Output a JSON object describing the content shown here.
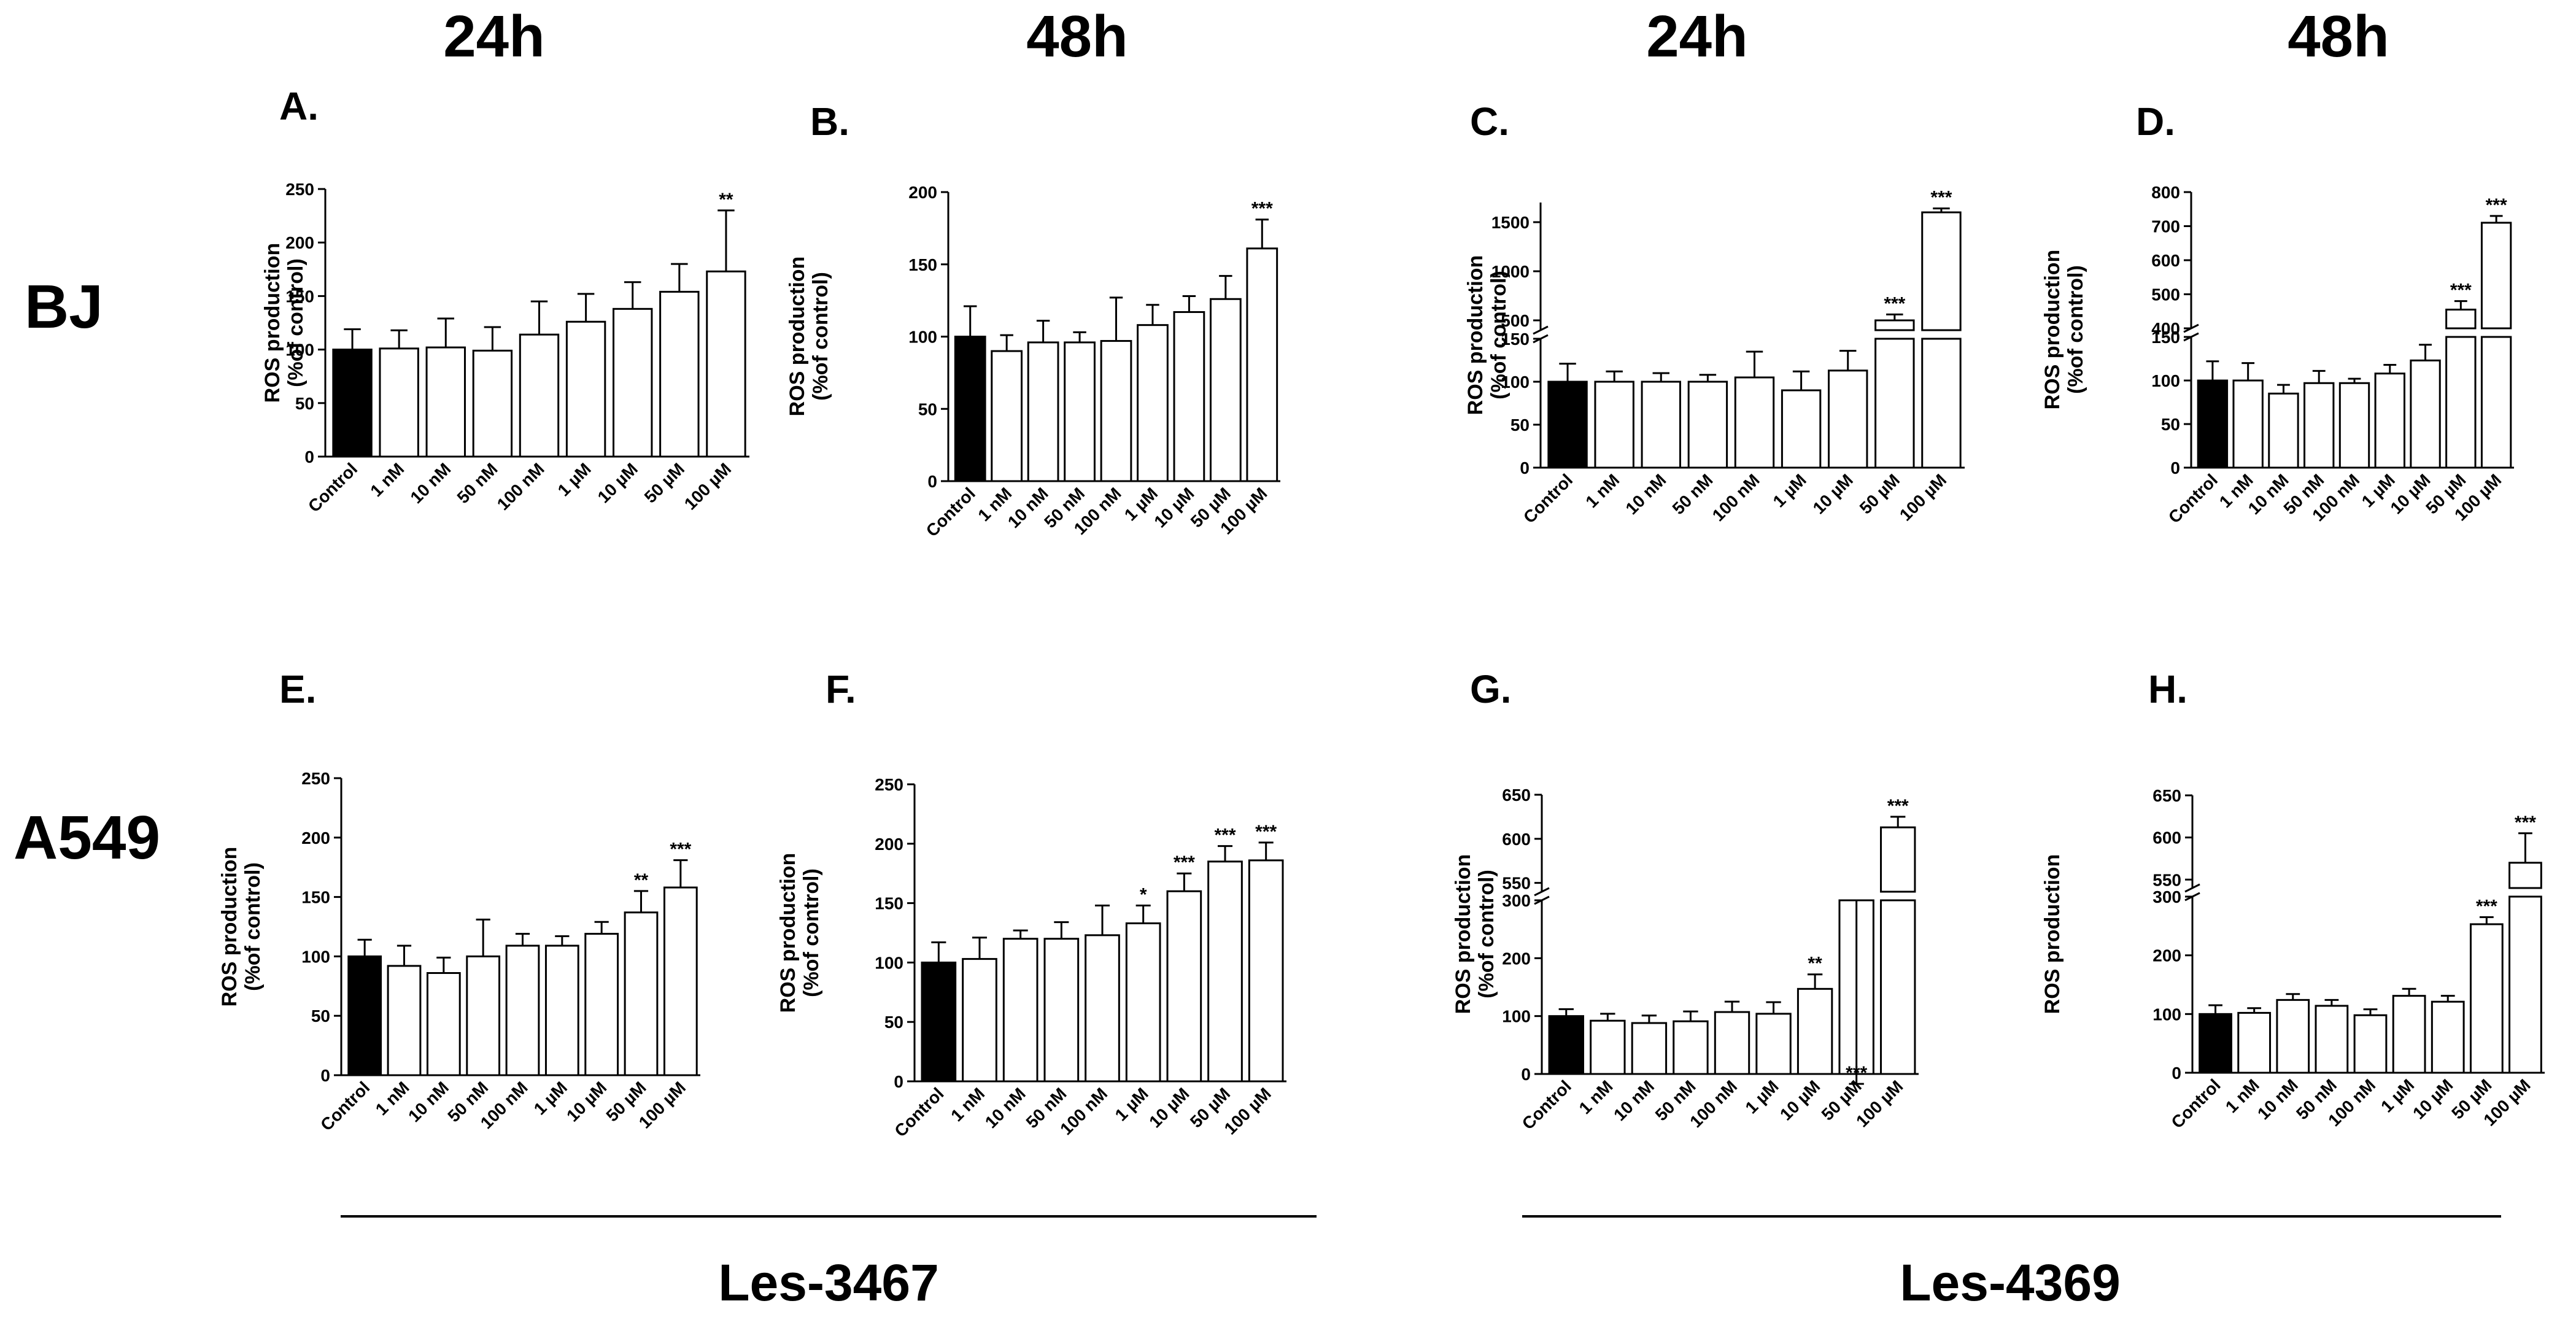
{
  "column_headers": [
    "24h",
    "48h",
    "24h",
    "48h"
  ],
  "row_labels": [
    "BJ",
    "A549"
  ],
  "compounds": [
    "Les-3467",
    "Les-4369"
  ],
  "chart_data": [
    {
      "panel": "A.",
      "type": "bar",
      "ylabel_line1": "ROS production",
      "ylabel_line2": "(%of control)",
      "categories": [
        "Control",
        "1 nM",
        "10 nM",
        "50 nM",
        "100 nM",
        "1 µM",
        "10 µM",
        "50 µM",
        "100 µM"
      ],
      "values": [
        100,
        101,
        102,
        99,
        114,
        126,
        138,
        154,
        173
      ],
      "errors": [
        19,
        17,
        27,
        22,
        31,
        26,
        25,
        26,
        57
      ],
      "significance": [
        "",
        "",
        "",
        "",
        "",
        "",
        "",
        "",
        "**"
      ],
      "ylim": [
        0,
        250
      ],
      "yticks": [
        0,
        50,
        100,
        150,
        200,
        250
      ]
    },
    {
      "panel": "B.",
      "type": "bar",
      "ylabel_line1": "ROS production",
      "ylabel_line2": "(%of control)",
      "categories": [
        "Control",
        "1 nM",
        "10 nM",
        "50 nM",
        "100 nM",
        "1 µM",
        "10 µM",
        "50 µM",
        "100 µM"
      ],
      "values": [
        100,
        90,
        96,
        96,
        97,
        108,
        117,
        126,
        161
      ],
      "errors": [
        21,
        11,
        15,
        7,
        30,
        14,
        11,
        16,
        20
      ],
      "significance": [
        "",
        "",
        "",
        "",
        "",
        "",
        "",
        "",
        "***"
      ],
      "ylim": [
        0,
        200
      ],
      "yticks": [
        0,
        50,
        100,
        150,
        200
      ]
    },
    {
      "panel": "C.",
      "type": "bar",
      "ylabel_line1": "ROS production",
      "ylabel_line2": "(%of control)",
      "categories": [
        "Control",
        "1 nM",
        "10 nM",
        "50 nM",
        "100 nM",
        "1 µM",
        "10 µM",
        "50 µM",
        "100 µM"
      ],
      "values": [
        100,
        100,
        100,
        100,
        105,
        90,
        113,
        500,
        1600
      ],
      "errors": [
        21,
        12,
        10,
        8,
        30,
        22,
        23,
        60,
        40
      ],
      "significance": [
        "",
        "",
        "",
        "",
        "",
        "",
        "",
        "***",
        "***"
      ],
      "broken_axis": {
        "lower": [
          0,
          150
        ],
        "upper": [
          400,
          1700
        ]
      },
      "yticks_lower": [
        0,
        50,
        100,
        150
      ],
      "yticks_upper": [
        500,
        1000,
        1500
      ]
    },
    {
      "panel": "D.",
      "type": "bar",
      "ylabel_line1": "ROS production",
      "ylabel_line2": "(%of control)",
      "categories": [
        "Control",
        "1 nM",
        "10 nM",
        "50 nM",
        "100 nM",
        "1 µM",
        "10 µM",
        "50 µM",
        "100 µM"
      ],
      "values": [
        100,
        100,
        85,
        97,
        97,
        108,
        123,
        455,
        710
      ],
      "errors": [
        22,
        20,
        10,
        14,
        5,
        10,
        18,
        25,
        20
      ],
      "significance": [
        "",
        "",
        "",
        "",
        "",
        "",
        "",
        "***",
        "***"
      ],
      "broken_axis": {
        "lower": [
          0,
          150
        ],
        "upper": [
          400,
          800
        ]
      },
      "yticks_lower": [
        0,
        50,
        100,
        150
      ],
      "yticks_upper": [
        400,
        500,
        600,
        700,
        800
      ]
    },
    {
      "panel": "E.",
      "type": "bar",
      "ylabel_line1": "ROS production",
      "ylabel_line2": "(%of control)",
      "categories": [
        "Control",
        "1 nM",
        "10 nM",
        "50 nM",
        "100 nM",
        "1 µM",
        "10 µM",
        "50 µM",
        "100 µM"
      ],
      "values": [
        100,
        92,
        86,
        100,
        109,
        109,
        119,
        137,
        158
      ],
      "errors": [
        14,
        17,
        13,
        31,
        10,
        8,
        10,
        18,
        23
      ],
      "significance": [
        "",
        "",
        "",
        "",
        "",
        "",
        "",
        "**",
        "***"
      ],
      "ylim": [
        0,
        250
      ],
      "yticks": [
        0,
        50,
        100,
        150,
        200,
        250
      ]
    },
    {
      "panel": "F.",
      "type": "bar",
      "ylabel_line1": "ROS production",
      "ylabel_line2": "(%of control)",
      "categories": [
        "Control",
        "1 nM",
        "10 nM",
        "50 nM",
        "100 nM",
        "1 µM",
        "10 µM",
        "50 µM",
        "100 µM"
      ],
      "values": [
        100,
        103,
        120,
        120,
        123,
        133,
        160,
        185,
        186
      ],
      "errors": [
        17,
        18,
        7,
        14,
        25,
        15,
        15,
        13,
        15
      ],
      "significance": [
        "",
        "",
        "",
        "",
        "",
        "*",
        "***",
        "***",
        "***"
      ],
      "ylim": [
        0,
        250
      ],
      "yticks": [
        0,
        50,
        100,
        150,
        200,
        250
      ]
    },
    {
      "panel": "G.",
      "type": "bar",
      "ylabel_line1": "ROS production",
      "ylabel_line2": "(%of control)",
      "categories": [
        "Control",
        "1 nM",
        "10 nM",
        "50 nM",
        "100 nM",
        "1 µM",
        "10 µM",
        "50 µM",
        "100 µM"
      ],
      "values": [
        100,
        92,
        88,
        91,
        107,
        104,
        147,
        300,
        613
      ],
      "errors": [
        12,
        12,
        13,
        17,
        18,
        20,
        25,
        22,
        12
      ],
      "significance": [
        "",
        "",
        "",
        "",
        "",
        "",
        "**",
        "***",
        "***"
      ],
      "broken_axis": {
        "lower": [
          0,
          300
        ],
        "upper": [
          540,
          650
        ]
      },
      "yticks_lower": [
        0,
        100,
        200,
        300
      ],
      "yticks_upper": [
        550,
        600,
        650
      ]
    },
    {
      "panel": "H.",
      "type": "bar",
      "ylabel_line1": "ROS production",
      "ylabel_line2": "",
      "categories": [
        "Control",
        "1 nM",
        "10 nM",
        "50 nM",
        "100 nM",
        "1 µM",
        "10 µM",
        "50 µM",
        "100 µM"
      ],
      "values": [
        100,
        102,
        124,
        114,
        98,
        131,
        121,
        253,
        570
      ],
      "errors": [
        15,
        8,
        10,
        10,
        10,
        12,
        10,
        12,
        35
      ],
      "significance": [
        "",
        "",
        "",
        "",
        "",
        "",
        "",
        "***",
        "***"
      ],
      "broken_axis": {
        "lower": [
          0,
          300
        ],
        "upper": [
          540,
          650
        ]
      },
      "yticks_lower": [
        0,
        100,
        200,
        300
      ],
      "yticks_upper": [
        550,
        600,
        650
      ]
    }
  ]
}
